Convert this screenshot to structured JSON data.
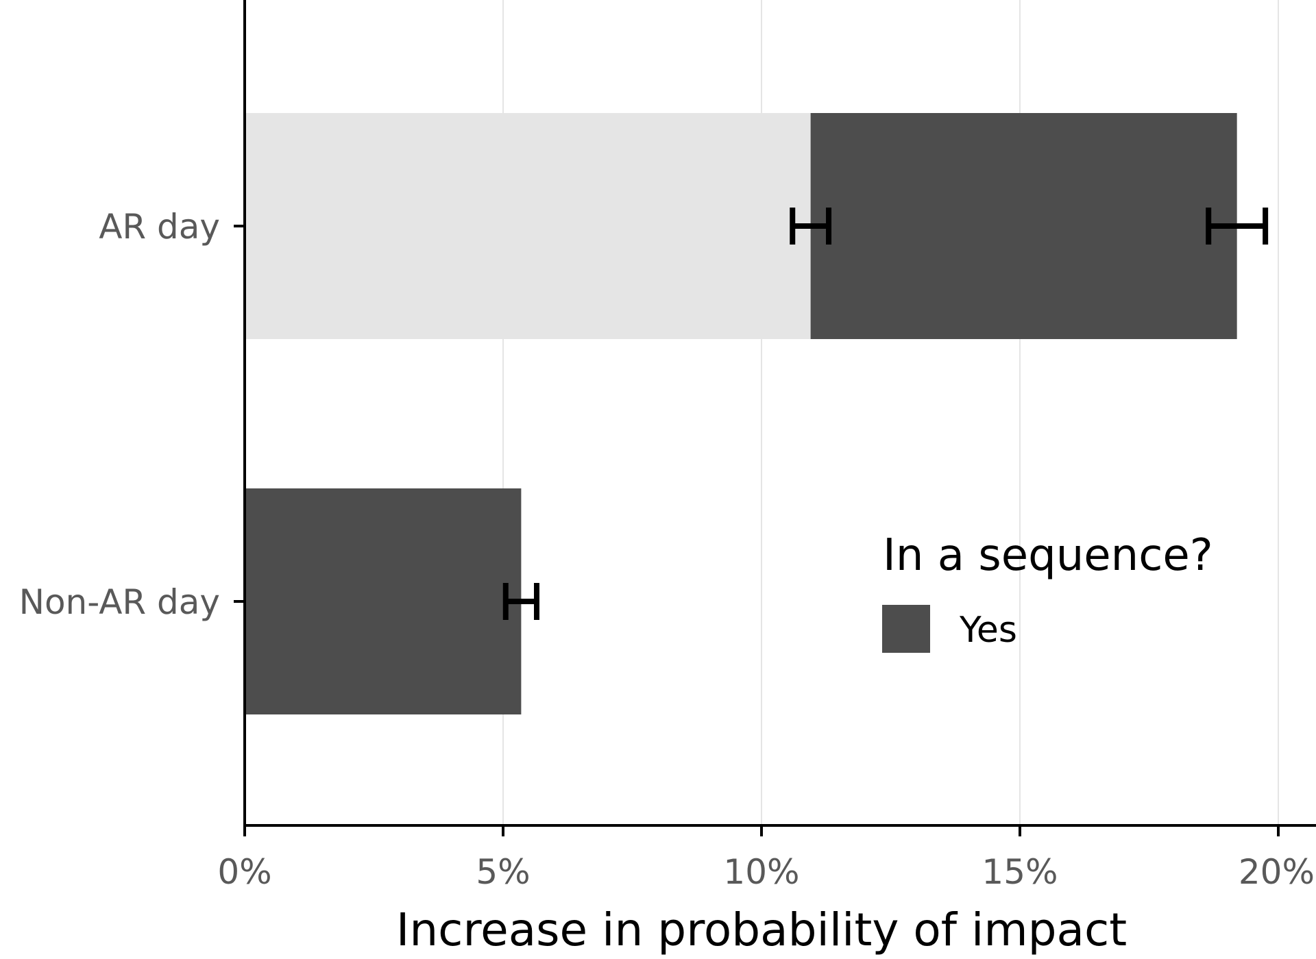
{
  "chart_data": {
    "type": "bar",
    "orientation": "horizontal",
    "stacked": true,
    "title": "",
    "xlabel": "Increase in probability of impact",
    "ylabel": "",
    "xlim": [
      0,
      20
    ],
    "x_ticks": [
      0,
      5,
      10,
      15,
      20
    ],
    "x_tick_labels": [
      "0%",
      "5%",
      "10%",
      "15%",
      "20%"
    ],
    "grid": "vertical major",
    "categories": [
      "AR day",
      "Non-AR day"
    ],
    "series": [
      {
        "key": "no",
        "color": "#e5e5e5",
        "values": [
          10.95,
          0
        ],
        "error": [
          [
            10.6,
            11.3
          ],
          null
        ]
      },
      {
        "key": "yes",
        "name": "Yes",
        "color": "#4d4d4d",
        "values": [
          8.25,
          5.35
        ],
        "error": [
          [
            18.65,
            19.75
          ],
          [
            5.05,
            5.65
          ]
        ]
      }
    ],
    "legend": {
      "title": "In a sequence?",
      "entries": [
        {
          "label": "Yes",
          "color": "#4d4d4d"
        }
      ],
      "position": "inside bottom-right"
    }
  }
}
